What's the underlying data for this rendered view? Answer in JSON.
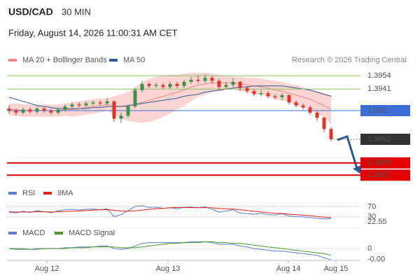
{
  "chart_data": [
    {
      "type": "candlestick",
      "title": "USD/CAD",
      "subtitle": "30 MIN",
      "date": "Friday, August 14, 2026 11:00:31 AM CET",
      "source": "Research © 2026 Trading Central",
      "color_up": "#3d8f4a",
      "color_down": "#d8392e",
      "ylim": [
        1.3849,
        1.3963
      ],
      "open": [
        1.3922,
        1.392,
        1.3918,
        1.3921,
        1.3919,
        1.3922,
        1.392,
        1.3918,
        1.3921,
        1.3924,
        1.3926,
        1.3925,
        1.3927,
        1.3928,
        1.3927,
        1.3929,
        1.3912,
        1.3915,
        1.3924,
        1.394,
        1.3946,
        1.3944,
        1.3945,
        1.3943,
        1.3946,
        1.3944,
        1.3948,
        1.395,
        1.3949,
        1.3952,
        1.3949,
        1.3943,
        1.3945,
        1.3948,
        1.3942,
        1.3939,
        1.3936,
        1.3937,
        1.3934,
        1.3933,
        1.3935,
        1.3928,
        1.3925,
        1.3923,
        1.3918,
        1.3913,
        1.3902
      ],
      "high": [
        1.3925,
        1.3922,
        1.3923,
        1.3923,
        1.3924,
        1.3924,
        1.3922,
        1.3923,
        1.3926,
        1.3928,
        1.3928,
        1.3929,
        1.393,
        1.393,
        1.3932,
        1.393,
        1.3918,
        1.3926,
        1.3942,
        1.3949,
        1.3948,
        1.3947,
        1.3947,
        1.3948,
        1.3948,
        1.395,
        1.3953,
        1.3954,
        1.3955,
        1.3954,
        1.3951,
        1.3948,
        1.3952,
        1.3949,
        1.3944,
        1.3941,
        1.394,
        1.3939,
        1.3936,
        1.3937,
        1.3936,
        1.393,
        1.3927,
        1.3925,
        1.392,
        1.3914,
        1.3904
      ],
      "low": [
        1.3917,
        1.3915,
        1.3916,
        1.3917,
        1.3917,
        1.3918,
        1.3916,
        1.3916,
        1.3919,
        1.3922,
        1.3923,
        1.3923,
        1.3925,
        1.3925,
        1.3925,
        1.3909,
        1.3908,
        1.3913,
        1.3922,
        1.3938,
        1.3942,
        1.3942,
        1.3941,
        1.3941,
        1.3942,
        1.3942,
        1.3946,
        1.3947,
        1.3947,
        1.3946,
        1.394,
        1.3941,
        1.3943,
        1.3939,
        1.3937,
        1.3934,
        1.3934,
        1.3932,
        1.3931,
        1.393,
        1.3926,
        1.3923,
        1.3921,
        1.3916,
        1.391,
        1.3899,
        1.389
      ],
      "close": [
        1.392,
        1.3918,
        1.3921,
        1.3919,
        1.3922,
        1.392,
        1.3918,
        1.3921,
        1.3924,
        1.3926,
        1.3925,
        1.3927,
        1.3928,
        1.3927,
        1.3929,
        1.3912,
        1.3915,
        1.3924,
        1.394,
        1.3946,
        1.3944,
        1.3945,
        1.3943,
        1.3946,
        1.3944,
        1.3948,
        1.395,
        1.3949,
        1.3952,
        1.3949,
        1.3943,
        1.3945,
        1.3948,
        1.3942,
        1.3939,
        1.3936,
        1.3937,
        1.3934,
        1.3933,
        1.3935,
        1.3928,
        1.3925,
        1.3923,
        1.3918,
        1.3913,
        1.3902,
        1.3892
      ],
      "series": [
        {
          "name": "MA 20 + Bollinger Bands",
          "color": "#f08a80",
          "band_color": "#fbd5d2",
          "values": [
            1.3921,
            1.3921,
            1.392,
            1.392,
            1.392,
            1.392,
            1.392,
            1.392,
            1.3921,
            1.3921,
            1.3922,
            1.3923,
            1.3924,
            1.3925,
            1.3926,
            1.3925,
            1.3924,
            1.3924,
            1.3926,
            1.3928,
            1.393,
            1.3932,
            1.3934,
            1.3936,
            1.3938,
            1.394,
            1.3943,
            1.3945,
            1.3946,
            1.3947,
            1.3947,
            1.3947,
            1.3947,
            1.3946,
            1.3945,
            1.3944,
            1.3943,
            1.3942,
            1.394,
            1.3939,
            1.3937,
            1.3935,
            1.3933,
            1.3931,
            1.3928,
            1.3925,
            1.3921
          ],
          "upper": [
            1.3927,
            1.3927,
            1.3926,
            1.3926,
            1.3926,
            1.3926,
            1.3926,
            1.3926,
            1.3927,
            1.3928,
            1.3929,
            1.393,
            1.3931,
            1.3932,
            1.3932,
            1.3934,
            1.3936,
            1.3938,
            1.3943,
            1.3948,
            1.3951,
            1.3953,
            1.3954,
            1.3955,
            1.3955,
            1.3956,
            1.3957,
            1.3957,
            1.3957,
            1.3956,
            1.3955,
            1.3954,
            1.3953,
            1.3953,
            1.3952,
            1.3952,
            1.3951,
            1.395,
            1.3949,
            1.3948,
            1.3946,
            1.3945,
            1.3943,
            1.3941,
            1.3939,
            1.3937,
            1.3935
          ],
          "lower": [
            1.3915,
            1.3915,
            1.3914,
            1.3914,
            1.3914,
            1.3914,
            1.3914,
            1.3914,
            1.3915,
            1.3914,
            1.3915,
            1.3916,
            1.3917,
            1.3918,
            1.392,
            1.3916,
            1.3912,
            1.391,
            1.3909,
            1.3908,
            1.3909,
            1.3911,
            1.3914,
            1.3917,
            1.3921,
            1.3924,
            1.3929,
            1.3933,
            1.3935,
            1.3938,
            1.3939,
            1.394,
            1.3941,
            1.3939,
            1.3938,
            1.3936,
            1.3935,
            1.3934,
            1.3931,
            1.393,
            1.3928,
            1.3925,
            1.3923,
            1.3921,
            1.3917,
            1.3913,
            1.3907
          ]
        },
        {
          "name": "MA 50",
          "color": "#2c5a96",
          "values": [
            1.3933,
            1.3931,
            1.3929,
            1.3927,
            1.3925,
            1.3924,
            1.3923,
            1.3922,
            1.3922,
            1.3922,
            1.3922,
            1.3922,
            1.3923,
            1.3923,
            1.3924,
            1.3924,
            1.3924,
            1.3925,
            1.3926,
            1.3927,
            1.3928,
            1.3929,
            1.393,
            1.3931,
            1.3932,
            1.3934,
            1.3935,
            1.3936,
            1.3938,
            1.3939,
            1.394,
            1.3941,
            1.3942,
            1.3943,
            1.3943,
            1.3944,
            1.3944,
            1.3944,
            1.3944,
            1.3944,
            1.3943,
            1.3942,
            1.3941,
            1.394,
            1.3938,
            1.3936,
            1.3934
          ]
        }
      ],
      "levels": [
        {
          "value": 1.3954,
          "color": "#8cc06a",
          "text_color": "#5a9a3a",
          "box": false,
          "style": "solid"
        },
        {
          "value": 1.3941,
          "color": "#8cc06a",
          "text_color": "#5a9a3a",
          "box": false,
          "style": "solid"
        },
        {
          "value": 1.392,
          "color": "#3d6fd6",
          "text_color": "#ffffff",
          "box": true,
          "style": "solid"
        },
        {
          "value": 1.3892,
          "color": "#333333",
          "text_color": "#ffffff",
          "box": true,
          "style": "dotted"
        },
        {
          "value": 1.3869,
          "color": "#e00000",
          "text_color": "#ffffff",
          "box": true,
          "style": "thick"
        },
        {
          "value": 1.3857,
          "color": "#e00000",
          "text_color": "#ffffff",
          "box": true,
          "style": "thick"
        }
      ]
    },
    {
      "type": "line",
      "ylim": [
        0,
        100
      ],
      "yticks": [
        70,
        30
      ],
      "series": [
        {
          "name": "RSI",
          "color": "#5b7fd0",
          "values": [
            48,
            45,
            52,
            47,
            55,
            50,
            46,
            53,
            58,
            60,
            57,
            60,
            61,
            58,
            62,
            30,
            38,
            55,
            72,
            75,
            68,
            69,
            63,
            67,
            62,
            68,
            70,
            66,
            71,
            60,
            48,
            53,
            58,
            45,
            42,
            40,
            43,
            38,
            37,
            42,
            32,
            30,
            29,
            26,
            24,
            20,
            22.55
          ]
        },
        {
          "name": "9MA",
          "color": "#e02020",
          "values": [
            50,
            49,
            49,
            49,
            50,
            50,
            49,
            50,
            51,
            52,
            53,
            55,
            57,
            58,
            59,
            56,
            53,
            52,
            54,
            57,
            60,
            62,
            64,
            66,
            68,
            67,
            67,
            67,
            67,
            66,
            63,
            62,
            61,
            58,
            55,
            52,
            49,
            46,
            44,
            43,
            40,
            38,
            36,
            34,
            31,
            28,
            26
          ]
        }
      ]
    },
    {
      "type": "line",
      "ylim": [
        -0.0014,
        0.001
      ],
      "yticks": [
        0
      ],
      "xlim": [
        -0.3,
        56.7
      ],
      "xticks": [
        {
          "value": 5.4,
          "label": "Aug 12"
        },
        {
          "value": 22.7,
          "label": "Aug 13"
        },
        {
          "value": 39.9,
          "label": "Aug 14"
        },
        {
          "value": 46.7,
          "label": "Aug 15"
        }
      ],
      "series": [
        {
          "name": "MACD",
          "color": "#5b7fd0",
          "values": [
            0.0,
            -0.0001,
            -0.0001,
            -0.0001,
            0.0,
            0.0,
            0.0,
            0.0,
            0.0001,
            0.0001,
            0.0002,
            0.0002,
            0.0002,
            0.0003,
            0.0003,
            0.0,
            -0.0001,
            0.0,
            0.0003,
            0.0006,
            0.0007,
            0.0007,
            0.0007,
            0.0007,
            0.0007,
            0.0007,
            0.0008,
            0.0008,
            0.0008,
            0.0007,
            0.0005,
            0.0005,
            0.0005,
            0.0003,
            0.0002,
            0.0,
            -0.0001,
            -0.0002,
            -0.0003,
            -0.0003,
            -0.0004,
            -0.0005,
            -0.0006,
            -0.0007,
            -0.0008,
            -0.0011,
            -0.0013
          ],
          "value_labels": [
            null,
            null,
            null,
            null,
            null,
            null,
            null,
            null,
            null,
            null,
            null,
            null,
            null,
            null,
            null,
            null,
            null,
            null,
            null,
            null,
            null,
            null,
            null,
            null,
            null,
            null,
            null,
            null,
            null,
            null,
            null,
            null,
            null,
            null,
            null,
            null,
            null,
            null,
            null,
            null,
            null,
            null,
            null,
            null,
            null,
            null,
            "-0.00"
          ]
        },
        {
          "name": "MACD Signal",
          "color": "#4a9a2a",
          "values": [
            0.0,
            0.0,
            0.0,
            -0.0001,
            -0.0001,
            0.0,
            0.0,
            0.0,
            0.0,
            0.0001,
            0.0001,
            0.0001,
            0.0002,
            0.0002,
            0.0002,
            0.0002,
            0.0001,
            0.0001,
            0.0001,
            0.0002,
            0.0003,
            0.0004,
            0.0005,
            0.0006,
            0.0006,
            0.0007,
            0.0007,
            0.0007,
            0.0008,
            0.0008,
            0.0007,
            0.0007,
            0.0006,
            0.0006,
            0.0005,
            0.0004,
            0.0003,
            0.0002,
            0.0001,
            0.0,
            -0.0001,
            -0.0002,
            -0.0003,
            -0.0004,
            -0.0005,
            -0.0006,
            -0.0008
          ]
        }
      ]
    }
  ]
}
